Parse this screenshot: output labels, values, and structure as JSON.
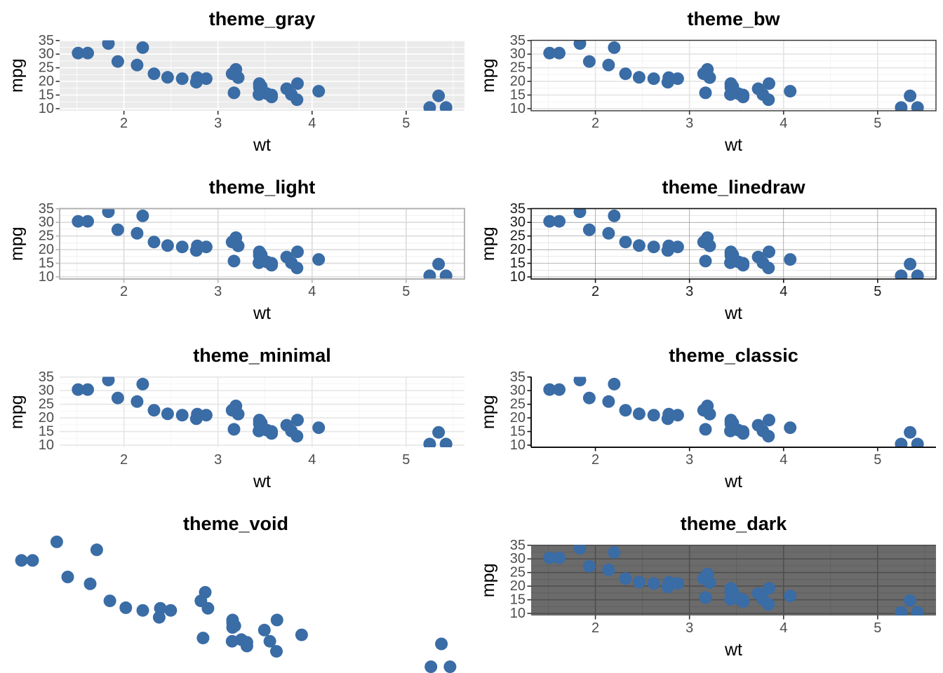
{
  "figure": {
    "background": "#ffffff",
    "point_color": "#3A6CA6",
    "point_radius": 9,
    "title_color": "#000000"
  },
  "chart_data": {
    "type": "scatter",
    "xlabel": "wt",
    "ylabel": "mpg",
    "xlim": [
      1.317,
      5.62
    ],
    "ylim": [
      9.225,
      35.075
    ],
    "x_ticks": [
      2,
      3,
      4,
      5
    ],
    "y_ticks": [
      35,
      30,
      25,
      20,
      15,
      10
    ],
    "x_minor": [
      1.5,
      2.5,
      3.5,
      4.5,
      5.5
    ],
    "y_minor": [
      12.5,
      17.5,
      22.5,
      27.5,
      32.5
    ],
    "grid": true,
    "legend": "none",
    "points": [
      [
        2.62,
        21.0
      ],
      [
        2.875,
        21.0
      ],
      [
        2.32,
        22.8
      ],
      [
        3.215,
        21.4
      ],
      [
        3.44,
        18.7
      ],
      [
        3.46,
        18.1
      ],
      [
        3.57,
        14.3
      ],
      [
        3.19,
        24.4
      ],
      [
        3.15,
        22.8
      ],
      [
        3.44,
        19.2
      ],
      [
        3.44,
        17.8
      ],
      [
        4.07,
        16.4
      ],
      [
        3.73,
        17.3
      ],
      [
        3.78,
        15.2
      ],
      [
        5.25,
        10.4
      ],
      [
        5.424,
        10.4
      ],
      [
        5.345,
        14.7
      ],
      [
        2.2,
        32.4
      ],
      [
        1.615,
        30.4
      ],
      [
        1.835,
        33.9
      ],
      [
        2.465,
        21.5
      ],
      [
        3.52,
        15.5
      ],
      [
        3.435,
        15.2
      ],
      [
        3.84,
        13.3
      ],
      [
        3.845,
        19.2
      ],
      [
        1.935,
        27.3
      ],
      [
        2.14,
        26.0
      ],
      [
        1.513,
        30.4
      ],
      [
        3.17,
        15.8
      ],
      [
        2.77,
        19.7
      ],
      [
        3.57,
        15.0
      ],
      [
        2.78,
        21.4
      ]
    ]
  },
  "panels": [
    {
      "title": "theme_gray",
      "theme": {
        "void": false,
        "panel_bg": "#EBEBEB",
        "grid_major": {
          "color": "#FFFFFF",
          "width": 1.6
        },
        "grid_minor": {
          "color": "#FFFFFF",
          "width": 0.8
        },
        "border": null,
        "axis_line": null,
        "ticks": {
          "color": "#333333"
        },
        "show_axis_text": true,
        "axis_text_color": "#4D4D4D"
      }
    },
    {
      "title": "theme_bw",
      "theme": {
        "void": false,
        "panel_bg": "#FFFFFF",
        "grid_major": {
          "color": "#E4E4E4",
          "width": 1.6
        },
        "grid_minor": {
          "color": "#F0F0F0",
          "width": 0.8
        },
        "border": {
          "color": "#333333",
          "width": 1.4
        },
        "axis_line": null,
        "ticks": {
          "color": "#333333"
        },
        "show_axis_text": true,
        "axis_text_color": "#4D4D4D"
      }
    },
    {
      "title": "theme_light",
      "theme": {
        "void": false,
        "panel_bg": "#FFFFFF",
        "grid_major": {
          "color": "#DBDBDB",
          "width": 1.6
        },
        "grid_minor": {
          "color": "#ECECEC",
          "width": 0.8
        },
        "border": {
          "color": "#ADADAD",
          "width": 1.8
        },
        "axis_line": null,
        "ticks": {
          "color": "#B3B3B3"
        },
        "show_axis_text": true,
        "axis_text_color": "#4D4D4D"
      }
    },
    {
      "title": "theme_linedraw",
      "theme": {
        "void": false,
        "panel_bg": "#FFFFFF",
        "grid_major": {
          "color": "#8F8F8F",
          "width": 0.7
        },
        "grid_minor": {
          "color": "#C4C4C4",
          "width": 0.4
        },
        "border": {
          "color": "#111111",
          "width": 1.6
        },
        "axis_line": null,
        "ticks": {
          "color": "#111111"
        },
        "show_axis_text": true,
        "axis_text_color": "#1A1A1A"
      }
    },
    {
      "title": "theme_minimal",
      "theme": {
        "void": false,
        "panel_bg": null,
        "grid_major": {
          "color": "#E6E6E6",
          "width": 1.6
        },
        "grid_minor": {
          "color": "#F2F2F2",
          "width": 0.8
        },
        "border": null,
        "axis_line": null,
        "ticks": null,
        "show_axis_text": true,
        "axis_text_color": "#4D4D4D"
      }
    },
    {
      "title": "theme_classic",
      "theme": {
        "void": false,
        "panel_bg": "#FFFFFF",
        "grid_major": null,
        "grid_minor": null,
        "border": null,
        "axis_line": {
          "color": "#111111",
          "width": 2
        },
        "ticks": {
          "color": "#111111"
        },
        "show_axis_text": true,
        "axis_text_color": "#4D4D4D"
      }
    },
    {
      "title": "theme_void",
      "theme": {
        "void": true,
        "panel_bg": null,
        "grid_major": null,
        "grid_minor": null,
        "border": null,
        "axis_line": null,
        "ticks": null,
        "show_axis_text": false,
        "axis_text_color": "#4D4D4D"
      }
    },
    {
      "title": "theme_dark",
      "theme": {
        "void": false,
        "panel_bg": "#6B6B6B",
        "grid_major": {
          "color": "#4F4F4F",
          "width": 1.6
        },
        "grid_minor": {
          "color": "#5D5D5D",
          "width": 0.8
        },
        "border": null,
        "axis_line": null,
        "ticks": {
          "color": "#333333"
        },
        "show_axis_text": true,
        "axis_text_color": "#4D4D4D"
      }
    }
  ]
}
